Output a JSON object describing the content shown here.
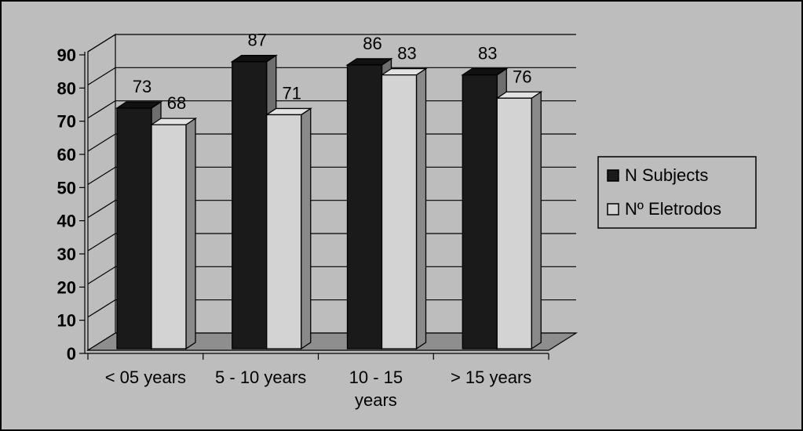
{
  "chart_data": {
    "type": "bar",
    "categories": [
      "< 05 years",
      "5 - 10 years",
      "10 - 15 years",
      "> 15 years"
    ],
    "series": [
      {
        "name": "N Subjects",
        "values": [
          73,
          87,
          86,
          83
        ],
        "color": "#1a1a1a"
      },
      {
        "name": "Nº Eletrodos",
        "values": [
          68,
          71,
          83,
          76
        ],
        "color": "#d3d3d3"
      }
    ],
    "yticks": [
      0,
      10,
      20,
      30,
      40,
      50,
      60,
      70,
      80,
      90
    ],
    "ylim": [
      0,
      90
    ],
    "grid": true,
    "style_3d": true,
    "legend_position": "right"
  },
  "colors": {
    "background": "#bdbdbd",
    "floor": "#8e8e8e",
    "bar_side_dark": "#6e6e6e",
    "bar_side_light": "#8a8a8a"
  }
}
